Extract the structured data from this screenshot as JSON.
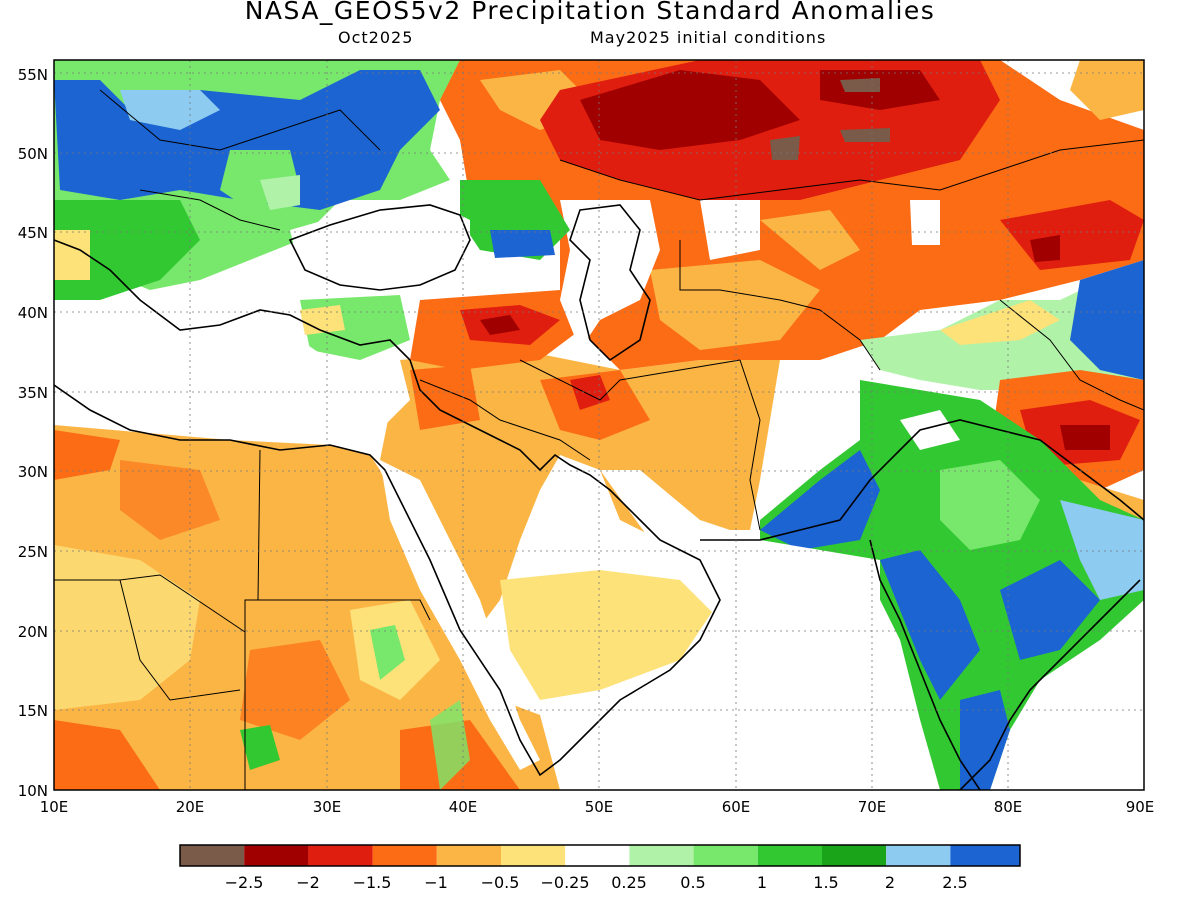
{
  "header": {
    "title": "NASA_GEOS5v2 Precipitation Standard Anomalies",
    "month": "Oct2025",
    "init": "May2025 initial conditions"
  },
  "axes": {
    "lat_labels": [
      "55N",
      "50N",
      "45N",
      "40N",
      "35N",
      "30N",
      "25N",
      "20N",
      "15N",
      "10N"
    ],
    "lon_labels": [
      "10E",
      "20E",
      "30E",
      "40E",
      "50E",
      "60E",
      "70E",
      "80E",
      "90E"
    ],
    "lat_range": [
      10,
      56
    ],
    "lon_range": [
      10,
      90
    ]
  },
  "colorbar": {
    "labels": [
      "−2.5",
      "−2",
      "−1.5",
      "−1",
      "−0.5",
      "−0.25",
      "0.25",
      "0.5",
      "1",
      "1.5",
      "2",
      "2.5"
    ],
    "colors": [
      "#7a5a48",
      "#a00000",
      "#e01e0f",
      "#fc6c14",
      "#fbb545",
      "#fde27a",
      "#ffffff",
      "#b0f2a8",
      "#78e86c",
      "#32c832",
      "#1aa41a",
      "#8ecbf0",
      "#1c64d2"
    ]
  }
}
